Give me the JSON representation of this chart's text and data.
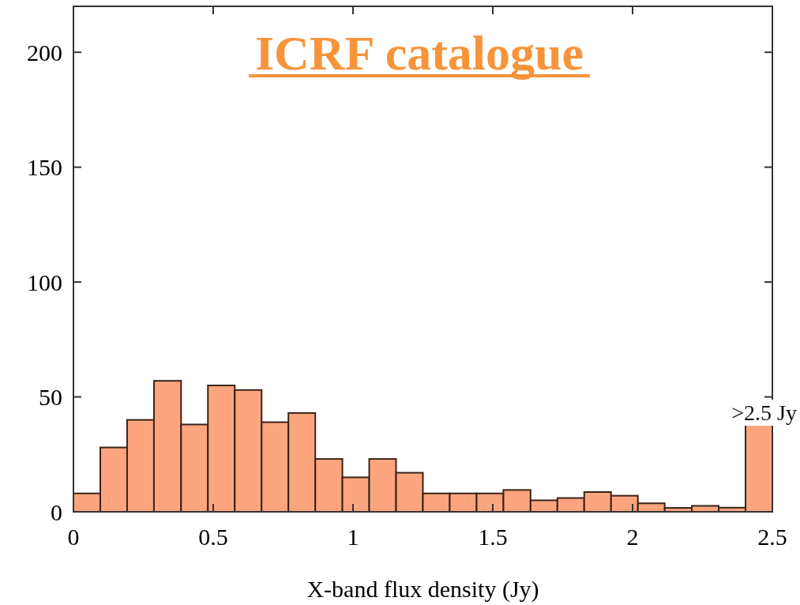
{
  "chart_data": {
    "type": "histogram",
    "title": "ICRF catalogue",
    "xlabel": "X-band flux density (Jy)",
    "bins": [
      0,
      0.096,
      0.192,
      0.288,
      0.385,
      0.481,
      0.577,
      0.673,
      0.769,
      0.865,
      0.962,
      1.058,
      1.154,
      1.25,
      1.346,
      1.442,
      1.538,
      1.635,
      1.731,
      1.827,
      1.923,
      2.019,
      2.115,
      2.212,
      2.308,
      2.404,
      2.5
    ],
    "values": [
      8,
      28,
      40,
      57,
      38,
      55,
      53,
      39,
      43,
      23,
      15,
      23,
      17,
      8,
      8,
      8,
      9.5,
      5,
      6,
      8.6,
      7,
      3.7,
      1.7,
      2.6,
      1.8,
      38
    ],
    "color": "#fca57e",
    "xlim": [
      0,
      2.5
    ],
    "xticks": [
      0,
      0.5,
      1,
      1.5,
      2,
      2.5
    ],
    "ylim": [
      0,
      220
    ],
    "yticks": [
      0,
      50,
      100,
      150,
      200
    ],
    "annotations": [
      ">2.5 Jy"
    ],
    "grid": false
  }
}
